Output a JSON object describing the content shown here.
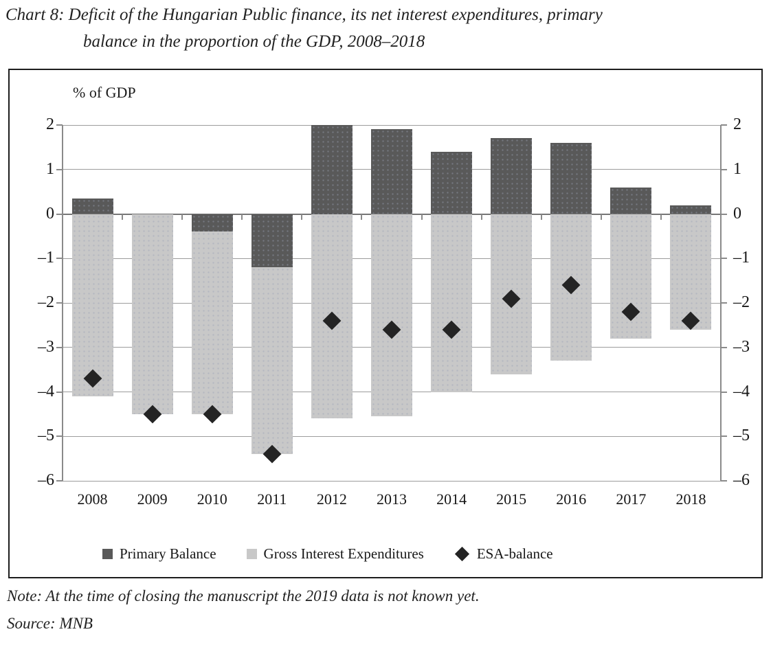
{
  "title": {
    "line1": "Chart 8: Deficit of the Hungarian Public finance, its net interest expenditures, primary",
    "line2": "balance in the proportion of the GDP, 2008–2018"
  },
  "axis_unit_label": "% of GDP",
  "note": "Note: At the time of closing the manuscript the 2019 data is not known yet.",
  "source": "Source: MNB",
  "legend": {
    "items": [
      {
        "label": "Primary Balance",
        "swatch": "dark-square",
        "color": "#595959"
      },
      {
        "label": "Gross Interest Expenditures",
        "swatch": "light-square",
        "color": "#c8c8c8"
      },
      {
        "label": "ESA-balance",
        "swatch": "diamond",
        "color": "#242424"
      }
    ]
  },
  "colors": {
    "primary_balance": "#595959",
    "gross_interest": "#c8c8c8",
    "esa_marker": "#242424",
    "gridline": "#9c9c9c",
    "axis": "#8a8a8a"
  },
  "chart_data": {
    "type": "bar",
    "subtype": "stacked-with-scatter-overlay",
    "title": "Chart 8: Deficit of the Hungarian Public finance, its net interest expenditures, primary balance in the proportion of the GDP, 2008–2018",
    "ylabel": "% of GDP",
    "xlabel": "",
    "categories": [
      "2008",
      "2009",
      "2010",
      "2011",
      "2012",
      "2013",
      "2014",
      "2015",
      "2016",
      "2017",
      "2018"
    ],
    "series": [
      {
        "name": "Primary Balance",
        "type": "bar",
        "color": "#595959",
        "values": [
          0.35,
          0,
          -0.4,
          -1.2,
          2.0,
          1.9,
          1.4,
          1.7,
          1.6,
          0.6,
          0.2
        ]
      },
      {
        "name": "Gross Interest Expenditures",
        "type": "bar",
        "color": "#c8c8c8",
        "values": [
          -4.1,
          -4.5,
          -4.1,
          -4.2,
          -4.6,
          -4.55,
          -4.0,
          -3.6,
          -3.3,
          -2.8,
          -2.6
        ]
      },
      {
        "name": "ESA-balance",
        "type": "scatter",
        "marker": "diamond",
        "color": "#242424",
        "values": [
          -3.7,
          -4.5,
          -4.5,
          -5.4,
          -2.4,
          -2.6,
          -2.6,
          -1.9,
          -1.6,
          -2.2,
          -2.4
        ]
      }
    ],
    "stack_note": "Gross Interest Expenditures bars are stacked below the Primary Balance when the Primary Balance is negative; ESA-balance diamonds overlay the bars.",
    "ylim": [
      -6,
      2
    ],
    "yticks": [
      2,
      1,
      0,
      -1,
      -2,
      -3,
      -4,
      -5,
      -6
    ],
    "grid": true,
    "dual_y_axis": true,
    "legend_position": "bottom"
  }
}
